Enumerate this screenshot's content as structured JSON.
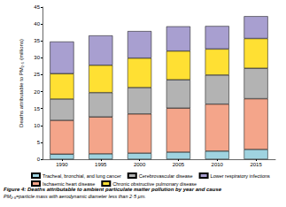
{
  "chart_data": {
    "type": "bar",
    "title": "Figure 4: Deaths attributable to ambient particulate matter pollution by year and cause",
    "subtitle": "PM₂.₅=particle mass with aerodynamic diameter less than 2·5 µm.",
    "ylabel": "Deaths attributable to PM₂.₅ (millions)",
    "categories": [
      "1990",
      "1995",
      "2000",
      "2005",
      "2010",
      "2015"
    ],
    "series": [
      {
        "name": "Tracheal, bronchial, and lung cancer",
        "color": "#9fd3e0",
        "values": [
          1.5,
          1.6,
          1.8,
          2.1,
          2.4,
          2.9
        ]
      },
      {
        "name": "Ischaemic heart disease",
        "color": "#f4a58a",
        "values": [
          10.0,
          10.9,
          11.6,
          13.0,
          13.9,
          15.0
        ]
      },
      {
        "name": "Cerebrovascular disease",
        "color": "#b3b3b3",
        "values": [
          6.3,
          7.2,
          7.8,
          8.4,
          8.6,
          9.0
        ]
      },
      {
        "name": "Chronic obstructive pulmonary disease",
        "color": "#ffe033",
        "values": [
          7.5,
          8.1,
          8.7,
          8.5,
          7.7,
          8.8
        ]
      },
      {
        "name": "Lower respiratory infections",
        "color": "#a89fd0",
        "values": [
          9.5,
          8.8,
          8.0,
          7.3,
          6.8,
          6.6
        ]
      }
    ],
    "ylim": [
      0,
      45
    ],
    "yticks": [
      0,
      5,
      10,
      15,
      20,
      25,
      30,
      35,
      40,
      45
    ],
    "stacked": true,
    "grid": false,
    "legend": "bottom"
  }
}
